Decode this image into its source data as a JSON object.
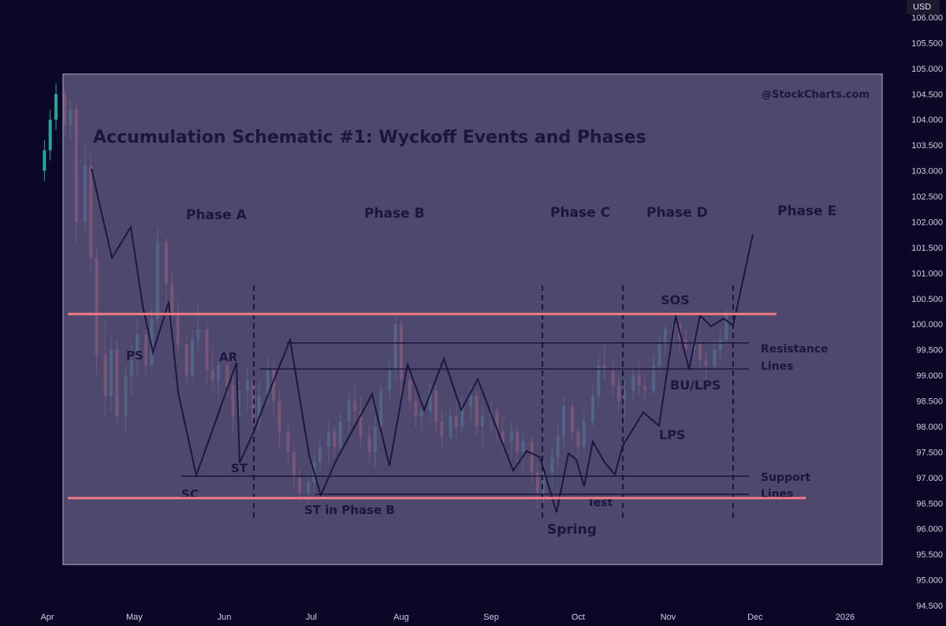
{
  "currency": "USD",
  "chart_data": {
    "type": "candlestick",
    "x_ticks": [
      "Apr",
      "May",
      "Jun",
      "Jul",
      "Aug",
      "Sep",
      "Oct",
      "Nov",
      "Dec",
      "2026"
    ],
    "y_ticks": [
      "94.500",
      "95.000",
      "95.500",
      "96.000",
      "96.500",
      "97.000",
      "97.500",
      "98.000",
      "98.500",
      "99.000",
      "99.500",
      "100.000",
      "100.500",
      "101.000",
      "101.500",
      "102.000",
      "102.500",
      "103.000",
      "103.500",
      "104.000",
      "104.500",
      "105.000",
      "105.500",
      "106.000"
    ],
    "ylim": [
      94.3,
      106.3
    ],
    "horizontal_lines": [
      100.2,
      96.6
    ],
    "candles": [
      {
        "d": "2025-03-31",
        "o": 103.0,
        "h": 103.6,
        "l": 102.8,
        "c": 103.4
      },
      {
        "d": "2025-04-02",
        "o": 103.4,
        "h": 104.2,
        "l": 103.2,
        "c": 104.0
      },
      {
        "d": "2025-04-04",
        "o": 104.0,
        "h": 104.7,
        "l": 103.8,
        "c": 104.5
      },
      {
        "d": "2025-04-07",
        "o": 104.5,
        "h": 104.6,
        "l": 103.7,
        "c": 103.9
      },
      {
        "d": "2025-04-09",
        "o": 103.9,
        "h": 104.4,
        "l": 103.6,
        "c": 104.2
      },
      {
        "d": "2025-04-11",
        "o": 104.2,
        "h": 104.3,
        "l": 101.6,
        "c": 102.0
      },
      {
        "d": "2025-04-14",
        "o": 102.0,
        "h": 103.5,
        "l": 101.8,
        "c": 103.1
      },
      {
        "d": "2025-04-16",
        "o": 103.1,
        "h": 103.3,
        "l": 101.0,
        "c": 101.3
      },
      {
        "d": "2025-04-18",
        "o": 101.3,
        "h": 101.5,
        "l": 99.0,
        "c": 99.4
      },
      {
        "d": "2025-04-21",
        "o": 99.4,
        "h": 100.1,
        "l": 98.2,
        "c": 98.6
      },
      {
        "d": "2025-04-23",
        "o": 98.6,
        "h": 99.8,
        "l": 98.3,
        "c": 99.5
      },
      {
        "d": "2025-04-25",
        "o": 99.5,
        "h": 99.7,
        "l": 98.0,
        "c": 98.2
      },
      {
        "d": "2025-04-28",
        "o": 98.2,
        "h": 99.2,
        "l": 97.9,
        "c": 99.0
      },
      {
        "d": "2025-04-30",
        "o": 99.0,
        "h": 99.6,
        "l": 98.6,
        "c": 99.3
      },
      {
        "d": "2025-05-02",
        "o": 99.3,
        "h": 100.1,
        "l": 99.0,
        "c": 99.8
      },
      {
        "d": "2025-05-05",
        "o": 99.8,
        "h": 99.9,
        "l": 99.0,
        "c": 99.2
      },
      {
        "d": "2025-05-07",
        "o": 99.2,
        "h": 100.3,
        "l": 99.1,
        "c": 100.1
      },
      {
        "d": "2025-05-09",
        "o": 100.1,
        "h": 101.9,
        "l": 100.0,
        "c": 101.6
      },
      {
        "d": "2025-05-12",
        "o": 101.6,
        "h": 101.7,
        "l": 100.4,
        "c": 100.8
      },
      {
        "d": "2025-05-14",
        "o": 100.8,
        "h": 101.0,
        "l": 99.9,
        "c": 100.2
      },
      {
        "d": "2025-05-16",
        "o": 100.2,
        "h": 100.5,
        "l": 99.4,
        "c": 99.6
      },
      {
        "d": "2025-05-19",
        "o": 99.6,
        "h": 99.8,
        "l": 98.8,
        "c": 99.0
      },
      {
        "d": "2025-05-21",
        "o": 99.0,
        "h": 99.9,
        "l": 98.9,
        "c": 99.7
      },
      {
        "d": "2025-05-23",
        "o": 99.7,
        "h": 100.4,
        "l": 99.5,
        "c": 99.9
      },
      {
        "d": "2025-05-26",
        "o": 99.9,
        "h": 100.0,
        "l": 98.8,
        "c": 99.1
      },
      {
        "d": "2025-05-28",
        "o": 99.1,
        "h": 99.5,
        "l": 98.7,
        "c": 98.9
      },
      {
        "d": "2025-05-30",
        "o": 98.9,
        "h": 99.3,
        "l": 98.5,
        "c": 99.2
      },
      {
        "d": "2025-06-02",
        "o": 99.2,
        "h": 99.4,
        "l": 98.6,
        "c": 98.8
      },
      {
        "d": "2025-06-04",
        "o": 98.8,
        "h": 99.1,
        "l": 97.9,
        "c": 98.2
      },
      {
        "d": "2025-06-06",
        "o": 98.2,
        "h": 98.9,
        "l": 98.0,
        "c": 98.7
      },
      {
        "d": "2025-06-09",
        "o": 98.7,
        "h": 99.2,
        "l": 98.3,
        "c": 98.9
      },
      {
        "d": "2025-06-11",
        "o": 98.9,
        "h": 99.0,
        "l": 97.8,
        "c": 98.1
      },
      {
        "d": "2025-06-13",
        "o": 98.1,
        "h": 98.9,
        "l": 97.9,
        "c": 98.6
      },
      {
        "d": "2025-06-16",
        "o": 98.6,
        "h": 99.4,
        "l": 98.4,
        "c": 99.1
      },
      {
        "d": "2025-06-18",
        "o": 99.1,
        "h": 99.3,
        "l": 98.2,
        "c": 98.5
      },
      {
        "d": "2025-06-20",
        "o": 98.5,
        "h": 98.7,
        "l": 97.6,
        "c": 97.9
      },
      {
        "d": "2025-06-23",
        "o": 97.9,
        "h": 98.1,
        "l": 97.2,
        "c": 97.5
      },
      {
        "d": "2025-06-25",
        "o": 97.5,
        "h": 97.7,
        "l": 96.8,
        "c": 97.0
      },
      {
        "d": "2025-06-27",
        "o": 97.0,
        "h": 97.2,
        "l": 96.5,
        "c": 96.7
      },
      {
        "d": "2025-06-30",
        "o": 96.7,
        "h": 97.1,
        "l": 96.4,
        "c": 96.9
      },
      {
        "d": "2025-07-02",
        "o": 96.9,
        "h": 97.5,
        "l": 96.7,
        "c": 97.3
      },
      {
        "d": "2025-07-04",
        "o": 97.3,
        "h": 97.8,
        "l": 97.1,
        "c": 97.6
      },
      {
        "d": "2025-07-07",
        "o": 97.6,
        "h": 98.1,
        "l": 97.3,
        "c": 97.9
      },
      {
        "d": "2025-07-09",
        "o": 97.9,
        "h": 98.0,
        "l": 97.4,
        "c": 97.6
      },
      {
        "d": "2025-07-11",
        "o": 97.6,
        "h": 98.3,
        "l": 97.5,
        "c": 98.1
      },
      {
        "d": "2025-07-14",
        "o": 98.1,
        "h": 98.7,
        "l": 97.9,
        "c": 98.5
      },
      {
        "d": "2025-07-16",
        "o": 98.5,
        "h": 98.9,
        "l": 98.1,
        "c": 98.3
      },
      {
        "d": "2025-07-18",
        "o": 98.3,
        "h": 98.6,
        "l": 97.6,
        "c": 97.8
      },
      {
        "d": "2025-07-21",
        "o": 97.8,
        "h": 98.0,
        "l": 97.3,
        "c": 97.5
      },
      {
        "d": "2025-07-23",
        "o": 97.5,
        "h": 98.2,
        "l": 97.2,
        "c": 98.0
      },
      {
        "d": "2025-07-25",
        "o": 98.0,
        "h": 98.9,
        "l": 97.8,
        "c": 98.7
      },
      {
        "d": "2025-07-28",
        "o": 98.7,
        "h": 99.3,
        "l": 98.5,
        "c": 99.1
      },
      {
        "d": "2025-07-30",
        "o": 99.1,
        "h": 100.2,
        "l": 98.9,
        "c": 100.0
      },
      {
        "d": "2025-08-01",
        "o": 100.0,
        "h": 100.1,
        "l": 98.6,
        "c": 98.9
      },
      {
        "d": "2025-08-04",
        "o": 98.9,
        "h": 99.1,
        "l": 98.3,
        "c": 98.5
      },
      {
        "d": "2025-08-06",
        "o": 98.5,
        "h": 98.8,
        "l": 98.0,
        "c": 98.2
      },
      {
        "d": "2025-08-08",
        "o": 98.2,
        "h": 98.6,
        "l": 97.9,
        "c": 98.3
      },
      {
        "d": "2025-08-11",
        "o": 98.3,
        "h": 98.9,
        "l": 98.1,
        "c": 98.7
      },
      {
        "d": "2025-08-13",
        "o": 98.7,
        "h": 98.8,
        "l": 97.9,
        "c": 98.1
      },
      {
        "d": "2025-08-15",
        "o": 98.1,
        "h": 98.3,
        "l": 97.6,
        "c": 97.8
      },
      {
        "d": "2025-08-18",
        "o": 97.8,
        "h": 98.4,
        "l": 97.7,
        "c": 98.2
      },
      {
        "d": "2025-08-20",
        "o": 98.2,
        "h": 98.5,
        "l": 97.8,
        "c": 98.0
      },
      {
        "d": "2025-08-22",
        "o": 98.0,
        "h": 98.6,
        "l": 97.9,
        "c": 98.4
      },
      {
        "d": "2025-08-25",
        "o": 98.4,
        "h": 98.8,
        "l": 98.1,
        "c": 98.6
      },
      {
        "d": "2025-08-27",
        "o": 98.6,
        "h": 98.7,
        "l": 97.8,
        "c": 98.0
      },
      {
        "d": "2025-08-29",
        "o": 98.0,
        "h": 98.4,
        "l": 97.6,
        "c": 98.2
      },
      {
        "d": "2025-09-01",
        "o": 98.2,
        "h": 98.5,
        "l": 97.9,
        "c": 98.3
      },
      {
        "d": "2025-09-03",
        "o": 98.3,
        "h": 98.4,
        "l": 97.7,
        "c": 97.9
      },
      {
        "d": "2025-09-05",
        "o": 97.9,
        "h": 98.2,
        "l": 97.5,
        "c": 97.7
      },
      {
        "d": "2025-09-08",
        "o": 97.7,
        "h": 98.1,
        "l": 97.4,
        "c": 97.9
      },
      {
        "d": "2025-09-10",
        "o": 97.9,
        "h": 98.0,
        "l": 97.3,
        "c": 97.5
      },
      {
        "d": "2025-09-12",
        "o": 97.5,
        "h": 97.9,
        "l": 97.1,
        "c": 97.7
      },
      {
        "d": "2025-09-15",
        "o": 97.7,
        "h": 97.8,
        "l": 96.9,
        "c": 97.1
      },
      {
        "d": "2025-09-17",
        "o": 97.1,
        "h": 97.3,
        "l": 96.4,
        "c": 96.7
      },
      {
        "d": "2025-09-19",
        "o": 96.7,
        "h": 97.3,
        "l": 96.5,
        "c": 97.1
      },
      {
        "d": "2025-09-22",
        "o": 97.1,
        "h": 97.6,
        "l": 96.8,
        "c": 97.4
      },
      {
        "d": "2025-09-24",
        "o": 97.4,
        "h": 98.0,
        "l": 97.2,
        "c": 97.8
      },
      {
        "d": "2025-09-26",
        "o": 97.8,
        "h": 98.6,
        "l": 97.6,
        "c": 98.4
      },
      {
        "d": "2025-09-29",
        "o": 98.4,
        "h": 98.5,
        "l": 97.7,
        "c": 97.9
      },
      {
        "d": "2025-10-01",
        "o": 97.9,
        "h": 98.0,
        "l": 97.4,
        "c": 97.6
      },
      {
        "d": "2025-10-03",
        "o": 97.6,
        "h": 98.3,
        "l": 97.5,
        "c": 98.1
      },
      {
        "d": "2025-10-06",
        "o": 98.1,
        "h": 98.8,
        "l": 98.0,
        "c": 98.6
      },
      {
        "d": "2025-10-08",
        "o": 98.6,
        "h": 99.4,
        "l": 98.4,
        "c": 99.2
      },
      {
        "d": "2025-10-10",
        "o": 99.2,
        "h": 99.6,
        "l": 98.9,
        "c": 99.1
      },
      {
        "d": "2025-10-13",
        "o": 99.1,
        "h": 99.3,
        "l": 98.6,
        "c": 98.8
      },
      {
        "d": "2025-10-15",
        "o": 98.8,
        "h": 99.0,
        "l": 98.3,
        "c": 98.5
      },
      {
        "d": "2025-10-17",
        "o": 98.5,
        "h": 98.9,
        "l": 98.1,
        "c": 98.7
      },
      {
        "d": "2025-10-20",
        "o": 98.7,
        "h": 99.2,
        "l": 98.5,
        "c": 99.0
      },
      {
        "d": "2025-10-22",
        "o": 99.0,
        "h": 99.3,
        "l": 98.6,
        "c": 98.8
      },
      {
        "d": "2025-10-24",
        "o": 98.8,
        "h": 99.0,
        "l": 98.5,
        "c": 98.7
      },
      {
        "d": "2025-10-27",
        "o": 98.7,
        "h": 99.4,
        "l": 98.6,
        "c": 99.2
      },
      {
        "d": "2025-10-29",
        "o": 99.2,
        "h": 99.8,
        "l": 99.0,
        "c": 99.6
      },
      {
        "d": "2025-10-31",
        "o": 99.6,
        "h": 100.0,
        "l": 99.4,
        "c": 99.9
      },
      {
        "d": "2025-11-03",
        "o": 99.9,
        "h": 100.2,
        "l": 99.6,
        "c": 100.0
      },
      {
        "d": "2025-11-05",
        "o": 100.0,
        "h": 100.1,
        "l": 99.5,
        "c": 99.7
      },
      {
        "d": "2025-11-07",
        "o": 99.7,
        "h": 99.9,
        "l": 99.3,
        "c": 99.5
      },
      {
        "d": "2025-11-10",
        "o": 99.5,
        "h": 99.8,
        "l": 99.2,
        "c": 99.6
      },
      {
        "d": "2025-11-12",
        "o": 99.6,
        "h": 99.7,
        "l": 99.1,
        "c": 99.3
      },
      {
        "d": "2025-11-14",
        "o": 99.3,
        "h": 99.5,
        "l": 98.9,
        "c": 99.2
      },
      {
        "d": "2025-11-17",
        "o": 99.2,
        "h": 99.7,
        "l": 99.1,
        "c": 99.5
      },
      {
        "d": "2025-11-19",
        "o": 99.5,
        "h": 99.9,
        "l": 99.3,
        "c": 99.7
      },
      {
        "d": "2025-11-21",
        "o": 99.7,
        "h": 100.3,
        "l": 99.6,
        "c": 100.2
      }
    ]
  },
  "overlay": {
    "title": "Accumulation Schematic #1: Wyckoff Events and Phases",
    "watermark": "@StockCharts.com",
    "phases": [
      "Phase A",
      "Phase B",
      "Phase C",
      "Phase D",
      "Phase E"
    ],
    "events": {
      "ps": "PS",
      "ar": "AR",
      "sc": "SC",
      "st": "ST",
      "st_phase_b": "ST in Phase B",
      "spring": "Spring",
      "test": "Test",
      "sos": "SOS",
      "lps": "LPS",
      "bu_lps": "BU/LPS"
    },
    "resistance_label": [
      "Resistance",
      "Lines"
    ],
    "support_label": [
      "Support",
      "Lines"
    ]
  }
}
